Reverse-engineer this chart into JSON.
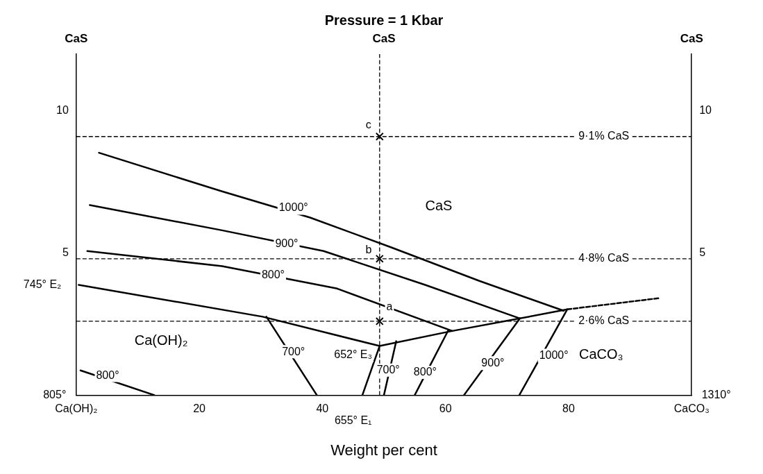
{
  "chart_data": {
    "type": "line",
    "title": "Pressure = 1 Kbar",
    "xlabel": "Weight per cent",
    "xlim": [
      0,
      100
    ],
    "ylim": [
      0,
      12
    ],
    "xticks": [
      {
        "value": 0,
        "label": "Ca(OH)₂"
      },
      20,
      40,
      60,
      80,
      {
        "value": 100,
        "label": "CaCO₃"
      }
    ],
    "yticks": [
      5,
      10
    ],
    "y2lim": [
      0,
      12
    ],
    "y2ticks": [
      5,
      10
    ],
    "grid": false,
    "legend": false,
    "series": [
      {
        "color": "#000000",
        "x": [
          3.7,
          23.7,
          38.0,
          51.2,
          65.5,
          79.2
        ],
        "values": [
          8.53,
          7.17,
          6.25,
          5.2,
          4.02,
          2.97
        ]
      },
      {
        "color": "#000000",
        "x": [
          2.2,
          23.7,
          40.2,
          56.7,
          72.1
        ],
        "values": [
          6.69,
          5.8,
          5.07,
          3.88,
          2.7
        ]
      },
      {
        "color": "#000000",
        "x": [
          1.8,
          23.7,
          42.4,
          61.1
        ],
        "values": [
          5.07,
          4.54,
          3.75,
          2.26
        ]
      },
      {
        "color": "#000000",
        "x": [
          0.4,
          30.3,
          49.3,
          61.1,
          72.1,
          79.8
        ],
        "values": [
          3.88,
          2.76,
          1.73,
          2.26,
          2.7,
          3.02
        ]
      },
      {
        "color": "#000000",
        "x": [
          46.5,
          49.3
        ],
        "values": [
          0,
          1.73
        ]
      },
      {
        "color": "#000000",
        "line_style": "dashed",
        "x": [
          79.8,
          94.6
        ],
        "values": [
          3.02,
          3.41
        ]
      },
      {
        "color": "#000000",
        "x": [
          30.9,
          39.1
        ],
        "values": [
          2.76,
          0
        ]
      },
      {
        "color": "#000000",
        "x": [
          0.7,
          12.7
        ],
        "values": [
          0.87,
          0
        ]
      },
      {
        "color": "#000000",
        "x": [
          52,
          50
        ],
        "values": [
          1.9,
          0
        ]
      },
      {
        "color": "#000000",
        "x": [
          60.5,
          55
        ],
        "values": [
          2.3,
          0
        ]
      },
      {
        "color": "#000000",
        "x": [
          72.1,
          63
        ],
        "values": [
          2.7,
          0
        ]
      },
      {
        "color": "#000000",
        "x": [
          79.8,
          72
        ],
        "values": [
          3.02,
          0
        ]
      },
      {
        "type": "scatter",
        "marker": "cross",
        "color": "#000000",
        "x": [
          49.3,
          49.3,
          49.3
        ],
        "values": [
          2.6,
          4.8,
          9.1
        ]
      }
    ],
    "ref_lines": [
      {
        "axis": "y",
        "value": 9.1,
        "label": "9·1% CaS",
        "line_style": "dashed"
      },
      {
        "axis": "y",
        "value": 4.8,
        "label": "4·8% CaS",
        "line_style": "dashed"
      },
      {
        "axis": "y",
        "value": 2.6,
        "label": "2·6% CaS",
        "line_style": "dashed"
      },
      {
        "axis": "x",
        "value": 49.3,
        "label": null,
        "line_style": "dashed"
      }
    ],
    "annotations": [
      "CaS",
      "CaS",
      "CaS",
      "CaS",
      "Ca(OH)₂",
      "CaCO₃",
      "652° E₃",
      "900°",
      "1000°",
      "b",
      "c",
      "745° E₂",
      "655° E₁",
      "805°",
      "1310°",
      "1000°",
      {
        "text": "900°",
        "x": 34.2,
        "y": 5.33
      },
      {
        "text": "800°",
        "x": 32.0,
        "y": 4.23
      },
      {
        "text": "700°",
        "x": 35.3,
        "y": 1.52
      },
      {
        "text": "800°",
        "x": 5.1,
        "y": 0.68
      },
      {
        "text": "700°",
        "x": 50.7,
        "y": 0.87
      },
      {
        "text": "800°",
        "x": 56.7,
        "y": 0.79
      },
      {
        "text": "a",
        "x": 50.9,
        "y": 3.1
      }
    ]
  }
}
